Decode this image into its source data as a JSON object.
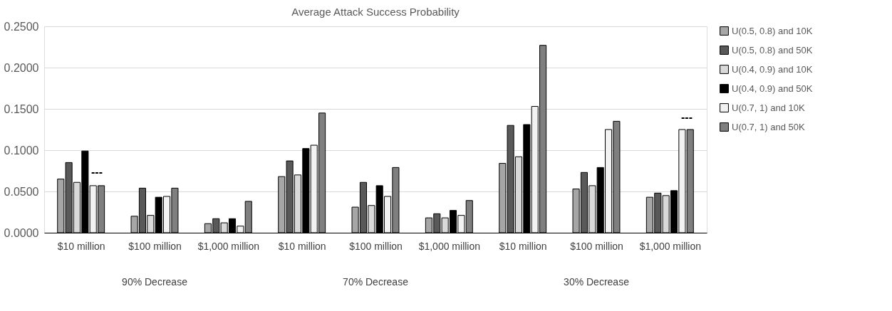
{
  "chart_data": {
    "type": "bar",
    "title": "Average Attack Success Probability",
    "categories": [
      "$10 million",
      "$100 million",
      "$1,000 million",
      "$10 million",
      "$100 million",
      "$1,000 million",
      "$10 million",
      "$100 million",
      "$1,000 million"
    ],
    "series": [
      {
        "name": "U(0.5, 0.8) and 10K",
        "color": "#a6a6a6",
        "values": [
          0.065,
          0.02,
          0.011,
          0.068,
          0.031,
          0.018,
          0.084,
          0.053,
          0.043
        ]
      },
      {
        "name": "U(0.5, 0.8) and 50K",
        "color": "#595959",
        "values": [
          0.085,
          0.054,
          0.017,
          0.087,
          0.061,
          0.023,
          0.13,
          0.073,
          0.048
        ]
      },
      {
        "name": "U(0.4, 0.9) and 10K",
        "color": "#d9d9d9",
        "values": [
          0.061,
          0.021,
          0.012,
          0.07,
          0.033,
          0.018,
          0.092,
          0.057,
          0.045
        ]
      },
      {
        "name": "U(0.4, 0.9) and 50K",
        "color": "#000000",
        "values": [
          0.099,
          0.043,
          0.017,
          0.102,
          0.057,
          0.027,
          0.131,
          0.079,
          0.051
        ]
      },
      {
        "name": "U(0.7, 1) and 10K",
        "color": "#f2f2f2",
        "values": [
          0.057,
          0.044,
          0.008,
          0.106,
          0.044,
          0.021,
          0.153,
          0.125,
          0.125
        ]
      },
      {
        "name": "U(0.7, 1) and 50K",
        "color": "#7f7f7f",
        "values": [
          0.057,
          0.054,
          0.038,
          0.145,
          0.079,
          0.039,
          0.227,
          0.135,
          0.125
        ]
      }
    ],
    "ylim": [
      0,
      0.25
    ],
    "yticks": [
      {
        "value": 0,
        "label": "0.0000"
      },
      {
        "value": 0.05,
        "label": "0.0500"
      },
      {
        "value": 0.1,
        "label": "0.1000"
      },
      {
        "value": 0.15,
        "label": "0.1500"
      },
      {
        "value": 0.2,
        "label": "0.2000"
      },
      {
        "value": 0.25,
        "label": "0.2500"
      }
    ],
    "grid": "y",
    "legend": "right",
    "annotations": [
      "90% Decrease",
      "70% Decrease",
      "30% Decrease",
      "---",
      "---"
    ]
  }
}
